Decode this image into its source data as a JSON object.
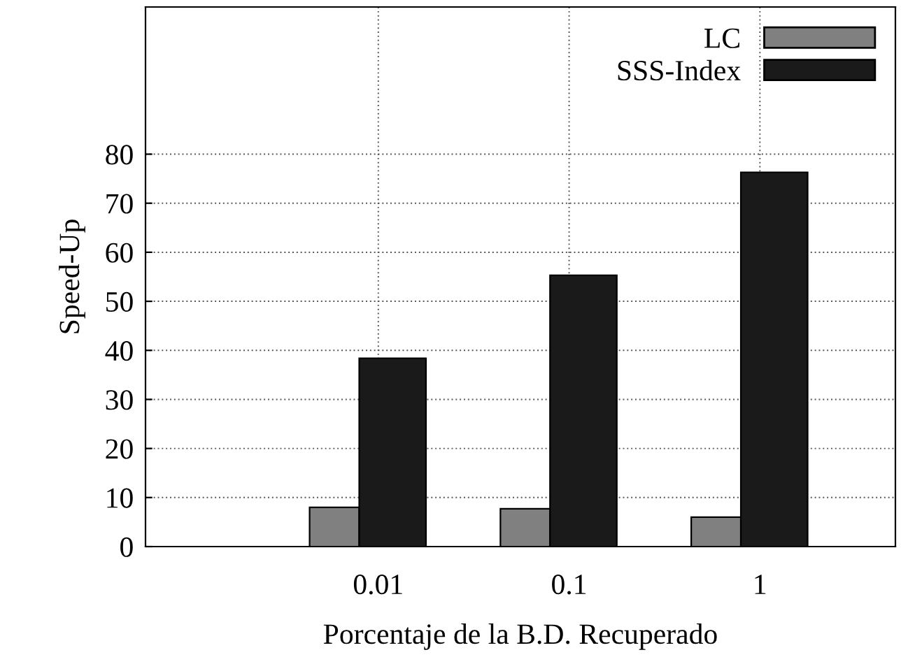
{
  "chart_data": {
    "type": "bar",
    "xlabel": "Porcentaje de la B.D. Recuperado",
    "ylabel": "Speed-Up",
    "categories": [
      "0.01",
      "0.1",
      "1"
    ],
    "series": [
      {
        "name": "LC",
        "color": "#808080",
        "values": [
          8.0,
          7.7,
          6.0
        ]
      },
      {
        "name": "SSS-Index",
        "color": "#1a1a1a",
        "values": [
          38.4,
          55.3,
          76.3
        ]
      }
    ],
    "ylim": [
      0,
      110
    ],
    "yticks": [
      0,
      10,
      20,
      30,
      40,
      50,
      60,
      70,
      80
    ],
    "grid": true,
    "legend": "top right"
  }
}
